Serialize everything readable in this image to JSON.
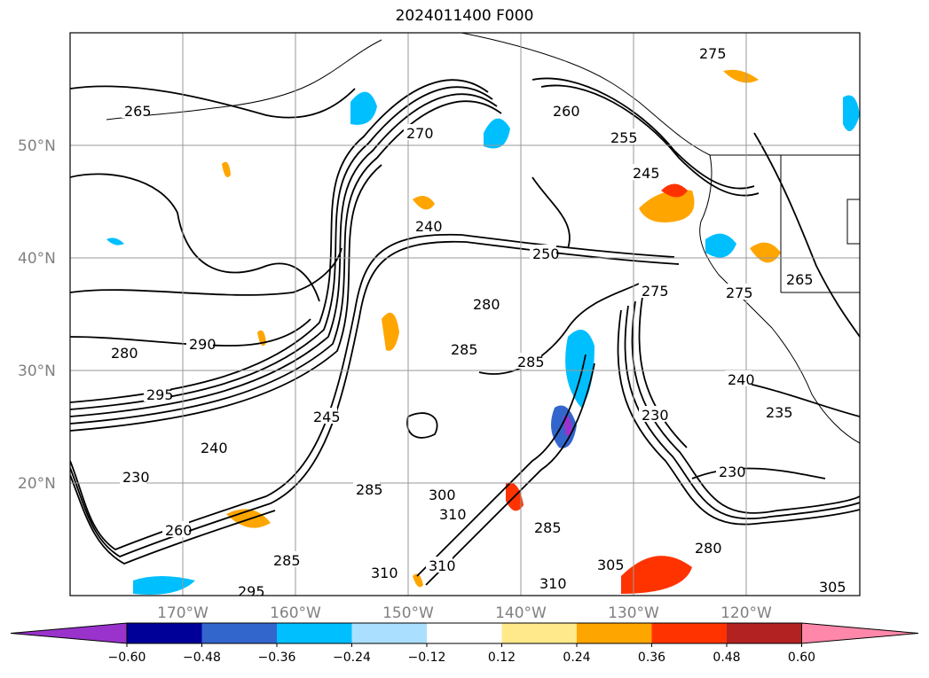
{
  "title": "2024011400 F000",
  "lat_ticks": [
    "50°N",
    "40°N",
    "30°N",
    "20°N"
  ],
  "lon_ticks": [
    "170°W",
    "160°W",
    "150°W",
    "140°W",
    "130°W",
    "120°W"
  ],
  "colorbar": {
    "ticks": [
      "−0.60",
      "−0.48",
      "−0.36",
      "−0.24",
      "−0.12",
      "0.12",
      "0.24",
      "0.36",
      "0.48",
      "0.60"
    ],
    "colors": [
      "#9933cc",
      "#000099",
      "#3366cc",
      "#00bfff",
      "#aadfff",
      "#ffffff",
      "#ffe98a",
      "#ffa500",
      "#ff3300",
      "#b22222",
      "#ff88aa"
    ]
  },
  "contour_labels": [
    "275",
    "270",
    "265",
    "260",
    "255",
    "250",
    "245",
    "240",
    "235",
    "230",
    "280",
    "285",
    "290",
    "295",
    "300",
    "305",
    "310"
  ],
  "colors": {
    "contour": "#000000",
    "grid": "#999999",
    "coast": "#000000"
  }
}
